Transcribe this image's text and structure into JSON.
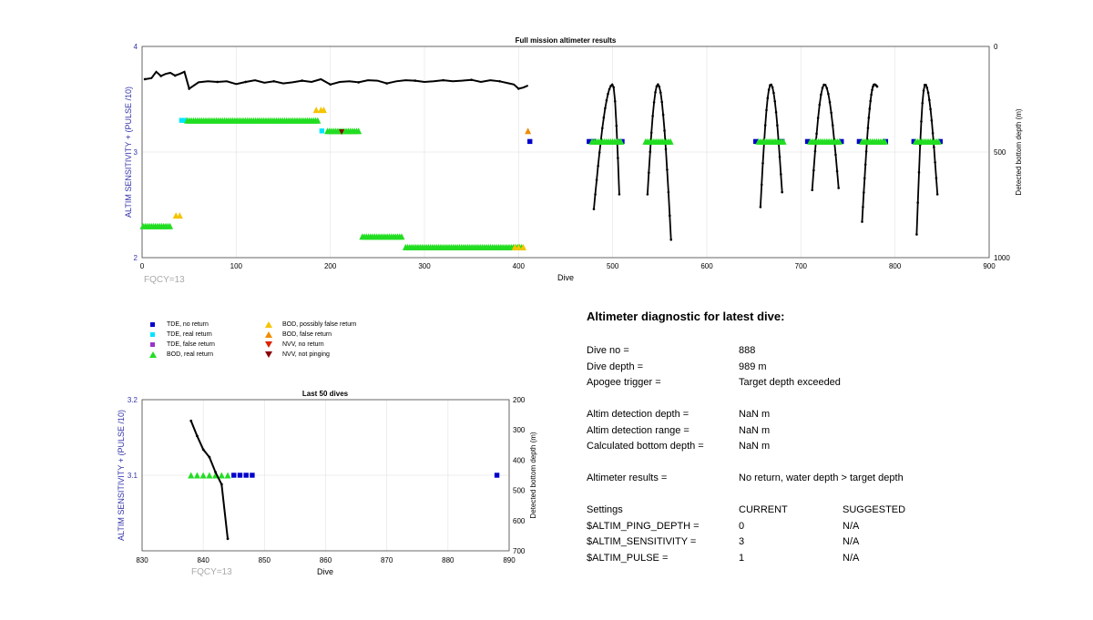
{
  "main_chart": {
    "title": "Full mission altimeter results",
    "xlabel": "Dive",
    "ylabel_left": "ALTIM SENSITIVITY + (PULSE /10)",
    "ylabel_right": "Detected bottom depth (m)",
    "note": "FQCY=13",
    "xticks": [
      "0",
      "100",
      "200",
      "300",
      "400",
      "500",
      "600",
      "700",
      "800",
      "900"
    ],
    "yticks_left": [
      "2",
      "3",
      "4"
    ],
    "yticks_right": [
      "0",
      "500",
      "1000"
    ]
  },
  "inset_chart": {
    "title": "Last 50 dives",
    "xlabel": "Dive",
    "ylabel_left": "ALTIM SENSITIVITY + (PULSE /10)",
    "ylabel_right": "Detected bottom depth (m)",
    "note": "FQCY=13",
    "xticks": [
      "830",
      "840",
      "850",
      "860",
      "870",
      "880",
      "890"
    ],
    "yticks_left": [
      "3.1",
      "3.2"
    ],
    "yticks_right": [
      "200",
      "300",
      "400",
      "500",
      "600",
      "700"
    ]
  },
  "legend": {
    "items": [
      {
        "label": "TDE, no return",
        "color": "#0000cc",
        "shape": "square"
      },
      {
        "label": "TDE, real return",
        "color": "#00e5ff",
        "shape": "square"
      },
      {
        "label": "TDE, false return",
        "color": "#9933cc",
        "shape": "square"
      },
      {
        "label": "BOD, real return",
        "color": "#22dd22",
        "shape": "triangle-up"
      },
      {
        "label": "BOD, possibly false return",
        "color": "#f5c400",
        "shape": "triangle-up"
      },
      {
        "label": "BOD, false return",
        "color": "#f08c00",
        "shape": "triangle-up"
      },
      {
        "label": "NVV, no return",
        "color": "#dd2200",
        "shape": "triangle-down"
      },
      {
        "label": "NVV, not pinging",
        "color": "#8b0000",
        "shape": "triangle-down"
      }
    ]
  },
  "diagnostic": {
    "title": "Altimeter diagnostic for latest dive:",
    "dive_no_label": "Dive no =",
    "dive_no": "888",
    "dive_depth_label": "Dive depth =",
    "dive_depth": "989 m",
    "apogee_label": "Apogee trigger =",
    "apogee": "Target depth exceeded",
    "det_depth_label": "Altim detection depth =",
    "det_depth": "NaN m",
    "det_range_label": "Altim detection range =",
    "det_range": "NaN m",
    "calc_depth_label": "Calculated bottom depth =",
    "calc_depth": "NaN m",
    "results_label": "Altimeter results =",
    "results": "No return, water depth > target depth",
    "settings_label": "Settings",
    "current_label": "CURRENT",
    "suggested_label": "SUGGESTED",
    "ping_label": "$ALTIM_PING_DEPTH =",
    "ping_cur": "0",
    "ping_sug": "N/A",
    "sens_label": "$ALTIM_SENSITIVITY =",
    "sens_cur": "3",
    "sens_sug": "N/A",
    "pulse_label": "$ALTIM_PULSE =",
    "pulse_cur": "1",
    "pulse_sug": "N/A"
  },
  "chart_data": [
    {
      "type": "scatter",
      "title": "Full mission altimeter results",
      "xlabel": "Dive",
      "ylabel": "ALTIM SENSITIVITY + (PULSE /10)",
      "y2label": "Detected bottom depth (m)",
      "xlim": [
        0,
        900
      ],
      "ylim": [
        2,
        4
      ],
      "y2lim": [
        0,
        1000
      ],
      "y2_reversed": true,
      "grid": true,
      "series": [
        {
          "name": "TDE, no return",
          "x": [
            412,
            475,
            480,
            510,
            652,
            680,
            707,
            743,
            762,
            790,
            820,
            848
          ],
          "y": [
            3.1,
            3.1,
            3.1,
            3.1,
            3.1,
            3.1,
            3.1,
            3.1,
            3.1,
            3.1,
            3.1,
            3.1
          ]
        },
        {
          "name": "TDE, real return",
          "x": [
            42,
            46,
            191
          ],
          "y": [
            3.3,
            3.3,
            3.2
          ]
        },
        {
          "name": "BOD, real return",
          "ranges": [
            [
              48,
              188,
              3.3
            ],
            [
              197,
              232,
              3.2
            ],
            [
              1,
              30,
              2.3
            ],
            [
              234,
              277,
              2.2
            ],
            [
              280,
              405,
              2.1
            ],
            [
              478,
              510,
              3.1
            ],
            [
              535,
              563,
              3.1
            ],
            [
              655,
              683,
              3.1
            ],
            [
              710,
              742,
              3.1
            ],
            [
              765,
              790,
              3.1
            ],
            [
              822,
              848,
              3.1
            ]
          ]
        },
        {
          "name": "BOD, possibly false return",
          "x": [
            36,
            40,
            185,
            190,
            193,
            396,
            400,
            405
          ],
          "y": [
            2.4,
            2.4,
            3.4,
            3.4,
            3.4,
            2.1,
            2.1,
            2.1
          ]
        },
        {
          "name": "BOD, false return",
          "x": [
            410
          ],
          "y": [
            3.2
          ]
        },
        {
          "name": "NVV, not pinging",
          "x": [
            212
          ],
          "y": [
            3.19
          ]
        }
      ],
      "depth_profile": {
        "x": [
          3,
          10,
          15,
          20,
          25,
          30,
          35,
          40,
          45,
          50,
          60,
          70,
          80,
          90,
          100,
          110,
          120,
          130,
          140,
          150,
          160,
          170,
          180,
          190,
          200,
          210,
          220,
          230,
          240,
          250,
          260,
          270,
          280,
          290,
          300,
          310,
          320,
          330,
          340,
          350,
          360,
          370,
          380,
          390,
          395,
          400,
          405,
          410
        ],
        "y": [
          155,
          150,
          120,
          140,
          130,
          125,
          138,
          130,
          120,
          200,
          170,
          165,
          168,
          165,
          178,
          168,
          160,
          172,
          165,
          175,
          170,
          162,
          168,
          155,
          180,
          168,
          165,
          170,
          160,
          162,
          175,
          165,
          160,
          162,
          168,
          165,
          160,
          165,
          162,
          158,
          168,
          160,
          165,
          175,
          180,
          200,
          195,
          185
        ],
        "dives": [
          {
            "start": 480,
            "apex": 500,
            "end": 507,
            "bottom_start": 770,
            "bottom_end": 700
          },
          {
            "start": 537,
            "apex": 548,
            "end": 562,
            "bottom_start": 700,
            "bottom_end": 915
          },
          {
            "start": 657,
            "apex": 668,
            "end": 680,
            "bottom_start": 760,
            "bottom_end": 690
          },
          {
            "start": 712,
            "apex": 725,
            "end": 740,
            "bottom_start": 680,
            "bottom_end": 670
          },
          {
            "start": 765,
            "apex": 778,
            "end": 781,
            "bottom_start": 830,
            "bottom_end": 190
          },
          {
            "start": 823,
            "apex": 832,
            "end": 845,
            "bottom_start": 890,
            "bottom_end": 700
          }
        ],
        "apex_depth": 180
      }
    },
    {
      "type": "scatter",
      "title": "Last 50 dives",
      "xlabel": "Dive",
      "ylabel": "ALTIM SENSITIVITY + (PULSE /10)",
      "y2label": "Detected bottom depth (m)",
      "xlim": [
        830,
        890
      ],
      "ylim": [
        3.0,
        3.2
      ],
      "y2lim": [
        200,
        700
      ],
      "y2_reversed": true,
      "grid": true,
      "series": [
        {
          "name": "BOD, real return",
          "x": [
            838,
            839,
            840,
            841,
            842,
            843,
            844
          ],
          "y": [
            3.1,
            3.1,
            3.1,
            3.1,
            3.1,
            3.1,
            3.1
          ]
        },
        {
          "name": "TDE, no return",
          "x": [
            845,
            846,
            847,
            848,
            888
          ],
          "y": [
            3.1,
            3.1,
            3.1,
            3.1,
            3.1
          ]
        },
        {
          "name": "depth",
          "x": [
            838,
            839,
            840,
            841,
            842,
            843,
            844
          ],
          "y": [
            270,
            320,
            365,
            390,
            440,
            480,
            660
          ]
        }
      ]
    }
  ]
}
